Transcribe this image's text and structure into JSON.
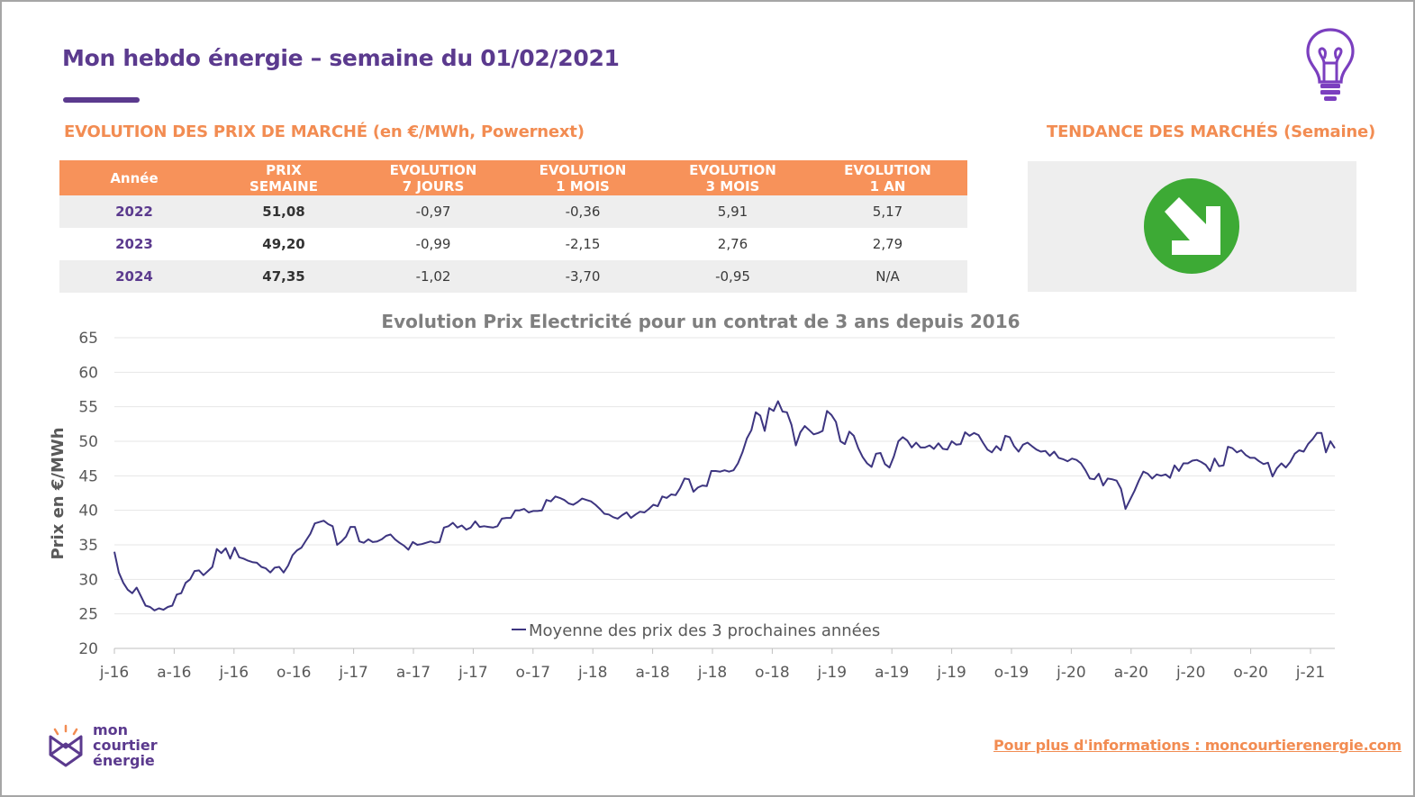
{
  "header": {
    "title": "Mon hebdo énergie – semaine du 01/02/2021"
  },
  "market_prices": {
    "heading_strong": "EVOLUTION DES PRIX DE MARCHÉ",
    "heading_light": "(en €/MWh, Powernext)",
    "columns": [
      {
        "line1": "Année",
        "line2": ""
      },
      {
        "line1": "PRIX",
        "line2": "SEMAINE"
      },
      {
        "line1": "EVOLUTION",
        "line2": "7 JOURS"
      },
      {
        "line1": "EVOLUTION",
        "line2": "1 MOIS"
      },
      {
        "line1": "EVOLUTION",
        "line2": "3 MOIS"
      },
      {
        "line1": "EVOLUTION",
        "line2": "1 AN"
      }
    ],
    "rows": [
      [
        "2022",
        "51,08",
        "-0,97",
        "-0,36",
        "5,91",
        "5,17"
      ],
      [
        "2023",
        "49,20",
        "-0,99",
        "-2,15",
        "2,76",
        "2,79"
      ],
      [
        "2024",
        "47,35",
        "-1,02",
        "-3,70",
        "-0,95",
        "N/A"
      ]
    ]
  },
  "trend": {
    "heading_strong": "TENDANCE DES MARCHÉS",
    "heading_light": "(Semaine)",
    "direction": "down",
    "icon": "down-right-arrow-icon",
    "color": "#3daa35"
  },
  "chart_data": {
    "type": "line",
    "title": "Evolution Prix Electricité pour un contrat de 3 ans depuis 2016",
    "ylabel": "Prix en €/MWh",
    "xlabel": "",
    "ylim": [
      20,
      65
    ],
    "yticks": [
      20,
      25,
      30,
      35,
      40,
      45,
      50,
      55,
      60,
      65
    ],
    "xticks": [
      "j-16",
      "a-16",
      "j-16",
      "o-16",
      "j-17",
      "a-17",
      "j-17",
      "o-17",
      "j-18",
      "a-18",
      "j-18",
      "o-18",
      "j-19",
      "a-19",
      "j-19",
      "o-19",
      "j-20",
      "a-20",
      "j-20",
      "o-20",
      "j-21"
    ],
    "grid": true,
    "legend_position": "bottom",
    "color": "#3d3580",
    "series": [
      {
        "name": "Moyenne des prix des 3 prochaines années",
        "values": [
          34,
          31,
          29.5,
          28.5,
          28,
          28.8,
          27.5,
          26.2,
          26,
          25.5,
          25.8,
          25.6,
          26,
          26.2,
          27.8,
          28,
          29.5,
          30,
          31.2,
          31.3,
          30.6,
          31.2,
          31.8,
          34.4,
          33.8,
          34.5,
          33,
          34.6,
          33.2,
          33,
          32.7,
          32.5,
          32.4,
          31.8,
          31.6,
          31,
          31.7,
          31.8,
          31,
          32,
          33.5,
          34.2,
          34.6,
          35.6,
          36.6,
          38.1,
          38.3,
          38.5,
          38,
          37.7,
          35,
          35.5,
          36.2,
          37.6,
          37.6,
          35.5,
          35.3,
          35.8,
          35.4,
          35.5,
          35.8,
          36.3,
          36.5,
          35.8,
          35.3,
          34.9,
          34.3,
          35.4,
          35,
          35.1,
          35.3,
          35.5,
          35.3,
          35.4,
          37.5,
          37.7,
          38.2,
          37.5,
          37.8,
          37.2,
          37.5,
          38.4,
          37.6,
          37.7,
          37.6,
          37.5,
          37.7,
          38.8,
          38.9,
          38.9,
          40,
          40,
          40.2,
          39.7,
          39.9,
          39.9,
          40,
          41.5,
          41.3,
          42,
          41.8,
          41.5,
          41,
          40.8,
          41.2,
          41.7,
          41.5,
          41.3,
          40.8,
          40.2,
          39.5,
          39.4,
          39,
          38.8,
          39.3,
          39.7,
          38.9,
          39.4,
          39.8,
          39.7,
          40.2,
          40.8,
          40.6,
          42,
          41.8,
          42.3,
          42.2,
          43.2,
          44.6,
          44.5,
          42.7,
          43.3,
          43.6,
          43.5,
          45.7,
          45.7,
          45.6,
          45.8,
          45.6,
          45.8,
          46.8,
          48.4,
          50.4,
          51.6,
          54.2,
          53.7,
          51.5,
          54.8,
          54.4,
          55.8,
          54.3,
          54.2,
          52.4,
          49.4,
          51.3,
          52.2,
          51.6,
          51,
          51.2,
          51.5,
          54.4,
          53.8,
          52.8,
          50,
          49.6,
          51.4,
          50.8,
          49,
          47.7,
          46.8,
          46.3,
          48.2,
          48.3,
          46.7,
          46.2,
          47.8,
          50,
          50.6,
          50.1,
          49.1,
          49.8,
          49.1,
          49.1,
          49.4,
          48.9,
          49.7,
          48.9,
          48.8,
          50,
          49.5,
          49.6,
          51.3,
          50.8,
          51.2,
          50.9,
          49.8,
          48.8,
          48.4,
          49.3,
          48.7,
          50.8,
          50.6,
          49.3,
          48.5,
          49.5,
          49.8,
          49.3,
          48.8,
          48.5,
          48.6,
          47.9,
          48.5,
          47.6,
          47.4,
          47.1,
          47.5,
          47.3,
          46.8,
          45.8,
          44.6,
          44.5,
          45.3,
          43.6,
          44.6,
          44.5,
          44.3,
          43.1,
          40.2,
          41.5,
          42.8,
          44.3,
          45.6,
          45.3,
          44.6,
          45.2,
          45,
          45.2,
          44.7,
          46.5,
          45.7,
          46.8,
          46.8,
          47.2,
          47.3,
          47,
          46.6,
          45.7,
          47.5,
          46.4,
          46.5,
          49.2,
          49,
          48.4,
          48.7,
          48,
          47.6,
          47.6,
          47.1,
          46.7,
          46.9,
          44.9,
          46.1,
          46.8,
          46.2,
          47,
          48.2,
          48.7,
          48.5,
          49.6,
          50.3,
          51.2,
          51.2,
          48.4,
          50,
          49
        ]
      }
    ]
  },
  "brand": {
    "line1": "mon",
    "line2": "courtier",
    "line3": "énergie"
  },
  "footer": {
    "info_link": "Pour plus d'informations : moncourtierenergie.com"
  }
}
